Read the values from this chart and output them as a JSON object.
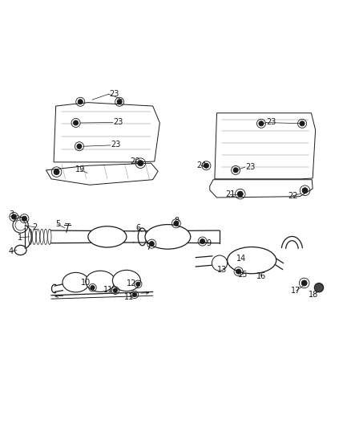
{
  "background_color": "#ffffff",
  "line_color": "#1a1a1a",
  "label_color": "#1a1a1a",
  "label_fontsize": 7,
  "fig_width": 4.38,
  "fig_height": 5.33,
  "dpi": 100
}
